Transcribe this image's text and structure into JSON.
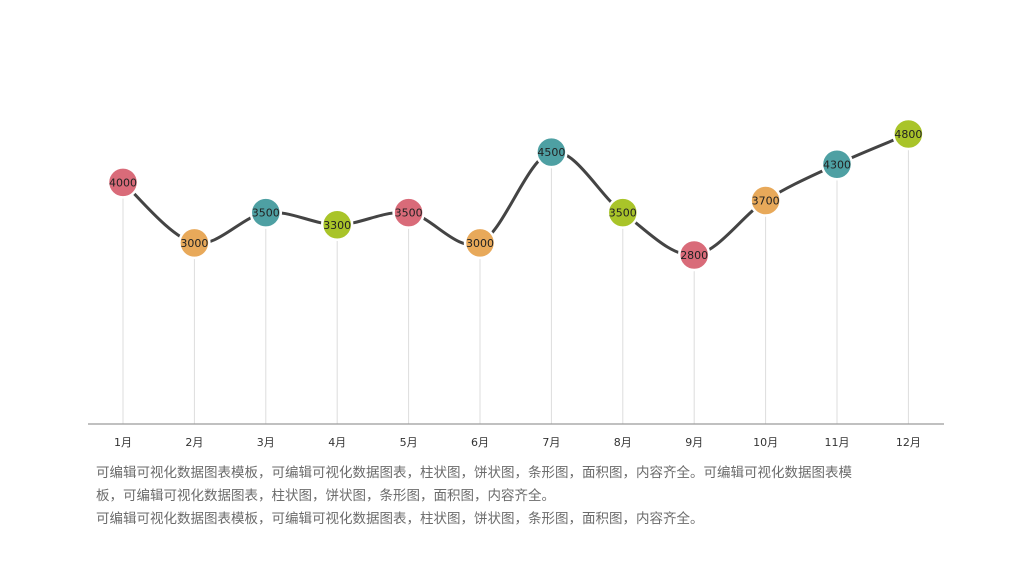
{
  "chart_data": {
    "type": "line",
    "categories": [
      "1月",
      "2月",
      "3月",
      "4月",
      "5月",
      "6月",
      "7月",
      "8月",
      "9月",
      "10月",
      "11月",
      "12月"
    ],
    "series": [
      {
        "values": [
          4000,
          3000,
          3500,
          3300,
          3500,
          3000,
          4500,
          3500,
          2800,
          3700,
          4300,
          4800
        ],
        "point_colors": [
          "#d96b79",
          "#e8a95a",
          "#4ea0a3",
          "#a9c429",
          "#d96b79",
          "#e8a95a",
          "#4ea0a3",
          "#a9c429",
          "#d96b79",
          "#e8a95a",
          "#4ea0a3",
          "#a9c429"
        ]
      }
    ],
    "line_color": "#444444",
    "ylim": [
      2000,
      5000
    ],
    "grid": false,
    "data_labels": true,
    "title": "",
    "xlabel": "",
    "ylabel": ""
  },
  "description": {
    "line1": "可编辑可视化数据图表模板，可编辑可视化数据图表，柱状图，饼状图，条形图，面积图，内容齐全。可编辑可视化数据图表模",
    "line2": "板，可编辑可视化数据图表，柱状图，饼状图，条形图，面积图，内容齐全。",
    "line3": "可编辑可视化数据图表模板，可编辑可视化数据图表，柱状图，饼状图，条形图，面积图，内容齐全。"
  }
}
